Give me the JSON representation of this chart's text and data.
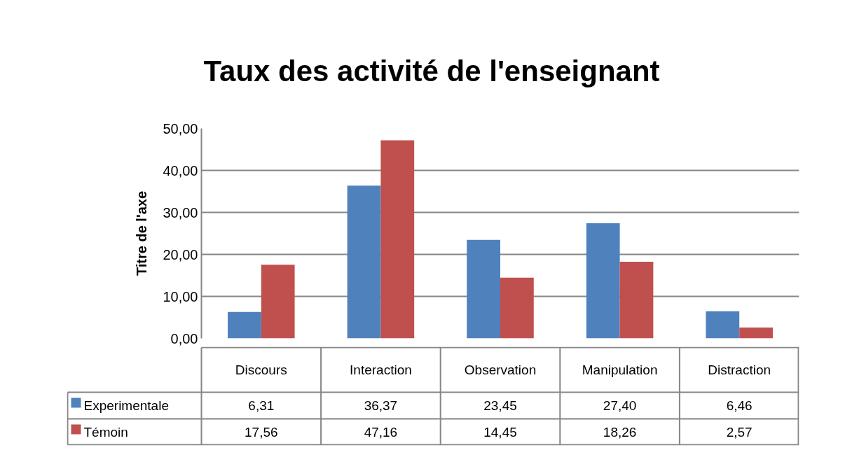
{
  "chart_data": {
    "type": "bar",
    "title": "Taux des activité de l'enseignant",
    "ylabel": "Titre de l'axe",
    "categories": [
      "Discours",
      "Interaction",
      "Observation",
      "Manipulation",
      "Distraction"
    ],
    "series": [
      {
        "name": "Experimentale",
        "color": "#4f81bd",
        "values": [
          6.31,
          36.37,
          23.45,
          27.4,
          6.46
        ],
        "value_labels": [
          "6,31",
          "36,37",
          "23,45",
          "27,40",
          "6,46"
        ]
      },
      {
        "name": "Témoin",
        "color": "#c0504d",
        "values": [
          17.56,
          47.16,
          14.45,
          18.26,
          2.57
        ],
        "value_labels": [
          "17,56",
          "47,16",
          "14,45",
          "18,26",
          "2,57"
        ]
      }
    ],
    "ylim": [
      0,
      50
    ],
    "yticks": [
      {
        "value": 0,
        "label": "0,00"
      },
      {
        "value": 10,
        "label": "10,00"
      },
      {
        "value": 20,
        "label": "20,00"
      },
      {
        "value": 30,
        "label": "30,00"
      },
      {
        "value": 40,
        "label": "40,00"
      },
      {
        "value": 50,
        "label": "50,00"
      }
    ],
    "grid": "y",
    "legend": "bottom"
  }
}
